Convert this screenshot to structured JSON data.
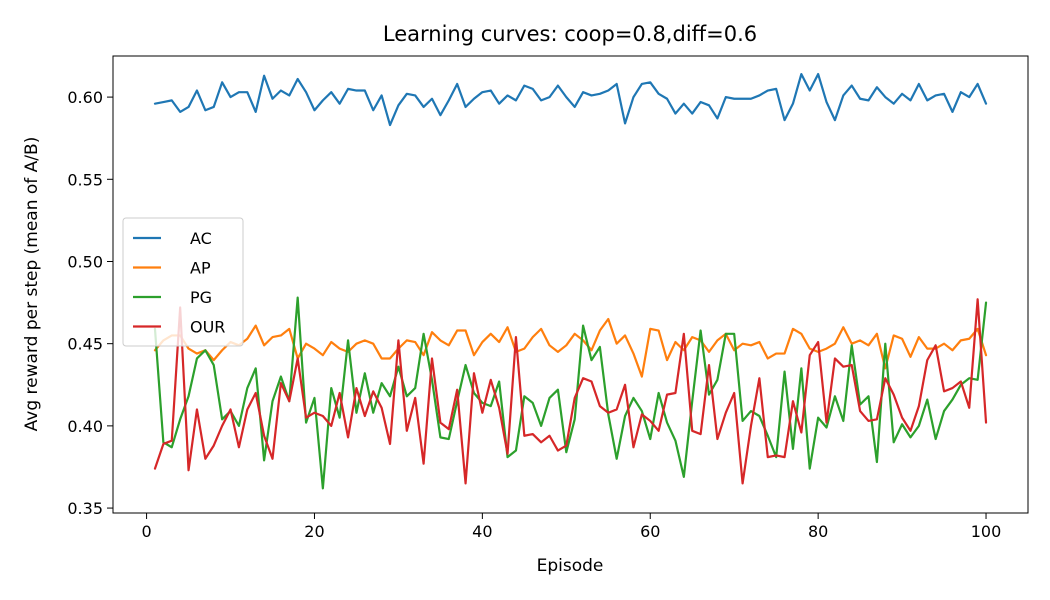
{
  "chart_data": {
    "type": "line",
    "title": "Learning curves: coop=0.8,diff=0.6",
    "xlabel": "Episode",
    "ylabel": "Avg reward per step (mean of A/B)",
    "xlim": [
      -4,
      105
    ],
    "ylim": [
      0.347,
      0.625
    ],
    "xticks": [
      0,
      20,
      40,
      60,
      80,
      100
    ],
    "xtick_labels": [
      "0",
      "20",
      "40",
      "60",
      "80",
      "100"
    ],
    "yticks": [
      0.35,
      0.4,
      0.45,
      0.5,
      0.55,
      0.6
    ],
    "ytick_labels": [
      "0.35",
      "0.40",
      "0.45",
      "0.50",
      "0.55",
      "0.60"
    ],
    "grid": false,
    "legend_position": "center-left",
    "x": [
      1,
      2,
      3,
      4,
      5,
      6,
      7,
      8,
      9,
      10,
      11,
      12,
      13,
      14,
      15,
      16,
      17,
      18,
      19,
      20,
      21,
      22,
      23,
      24,
      25,
      26,
      27,
      28,
      29,
      30,
      31,
      32,
      33,
      34,
      35,
      36,
      37,
      38,
      39,
      40,
      41,
      42,
      43,
      44,
      45,
      46,
      47,
      48,
      49,
      50,
      51,
      52,
      53,
      54,
      55,
      56,
      57,
      58,
      59,
      60,
      61,
      62,
      63,
      64,
      65,
      66,
      67,
      68,
      69,
      70,
      71,
      72,
      73,
      74,
      75,
      76,
      77,
      78,
      79,
      80,
      81,
      82,
      83,
      84,
      85,
      86,
      87,
      88,
      89,
      90,
      91,
      92,
      93,
      94,
      95,
      96,
      97,
      98,
      99,
      100
    ],
    "series": [
      {
        "name": "AC",
        "color": "#1f77b4",
        "values": [
          0.596,
          0.597,
          0.598,
          0.591,
          0.594,
          0.604,
          0.592,
          0.594,
          0.609,
          0.6,
          0.603,
          0.603,
          0.591,
          0.613,
          0.599,
          0.604,
          0.601,
          0.611,
          0.603,
          0.592,
          0.598,
          0.603,
          0.596,
          0.605,
          0.604,
          0.604,
          0.592,
          0.601,
          0.583,
          0.595,
          0.602,
          0.601,
          0.594,
          0.599,
          0.589,
          0.598,
          0.608,
          0.594,
          0.599,
          0.603,
          0.604,
          0.596,
          0.601,
          0.598,
          0.607,
          0.605,
          0.598,
          0.6,
          0.607,
          0.6,
          0.594,
          0.603,
          0.601,
          0.602,
          0.604,
          0.608,
          0.584,
          0.6,
          0.608,
          0.609,
          0.602,
          0.599,
          0.59,
          0.596,
          0.59,
          0.597,
          0.595,
          0.587,
          0.6,
          0.599,
          0.599,
          0.599,
          0.601,
          0.604,
          0.605,
          0.586,
          0.596,
          0.614,
          0.604,
          0.614,
          0.597,
          0.586,
          0.601,
          0.607,
          0.599,
          0.598,
          0.606,
          0.6,
          0.596,
          0.602,
          0.598,
          0.608,
          0.598,
          0.601,
          0.602,
          0.591,
          0.603,
          0.6,
          0.608,
          0.596
        ]
      },
      {
        "name": "AP",
        "color": "#ff7f0e",
        "values": [
          0.446,
          0.452,
          0.455,
          0.455,
          0.447,
          0.444,
          0.446,
          0.44,
          0.446,
          0.451,
          0.449,
          0.453,
          0.461,
          0.449,
          0.454,
          0.455,
          0.459,
          0.441,
          0.45,
          0.447,
          0.443,
          0.451,
          0.447,
          0.445,
          0.45,
          0.452,
          0.45,
          0.441,
          0.441,
          0.447,
          0.452,
          0.451,
          0.443,
          0.457,
          0.452,
          0.449,
          0.458,
          0.458,
          0.443,
          0.451,
          0.456,
          0.451,
          0.46,
          0.445,
          0.447,
          0.454,
          0.459,
          0.449,
          0.445,
          0.449,
          0.456,
          0.452,
          0.446,
          0.458,
          0.465,
          0.45,
          0.455,
          0.444,
          0.43,
          0.459,
          0.458,
          0.44,
          0.451,
          0.446,
          0.454,
          0.452,
          0.445,
          0.452,
          0.456,
          0.446,
          0.45,
          0.449,
          0.451,
          0.441,
          0.444,
          0.444,
          0.459,
          0.456,
          0.447,
          0.445,
          0.447,
          0.45,
          0.46,
          0.45,
          0.452,
          0.449,
          0.456,
          0.435,
          0.455,
          0.453,
          0.442,
          0.454,
          0.447,
          0.447,
          0.45,
          0.446,
          0.452,
          0.453,
          0.459,
          0.443
        ]
      },
      {
        "name": "PG",
        "color": "#2ca02c",
        "values": [
          0.459,
          0.39,
          0.387,
          0.404,
          0.418,
          0.441,
          0.446,
          0.437,
          0.404,
          0.409,
          0.4,
          0.423,
          0.435,
          0.379,
          0.415,
          0.43,
          0.415,
          0.478,
          0.402,
          0.417,
          0.362,
          0.423,
          0.405,
          0.452,
          0.408,
          0.432,
          0.408,
          0.426,
          0.418,
          0.436,
          0.418,
          0.423,
          0.456,
          0.428,
          0.393,
          0.392,
          0.415,
          0.437,
          0.42,
          0.414,
          0.412,
          0.427,
          0.381,
          0.385,
          0.418,
          0.414,
          0.4,
          0.417,
          0.422,
          0.384,
          0.404,
          0.461,
          0.44,
          0.448,
          0.407,
          0.38,
          0.406,
          0.417,
          0.409,
          0.392,
          0.42,
          0.402,
          0.391,
          0.369,
          0.415,
          0.458,
          0.419,
          0.428,
          0.456,
          0.456,
          0.403,
          0.409,
          0.406,
          0.394,
          0.381,
          0.433,
          0.386,
          0.435,
          0.374,
          0.405,
          0.399,
          0.418,
          0.403,
          0.449,
          0.413,
          0.418,
          0.378,
          0.45,
          0.39,
          0.401,
          0.393,
          0.4,
          0.416,
          0.392,
          0.409,
          0.416,
          0.425,
          0.429,
          0.428,
          0.475
        ]
      },
      {
        "name": "OUR",
        "color": "#d62728",
        "values": [
          0.374,
          0.389,
          0.391,
          0.472,
          0.373,
          0.41,
          0.38,
          0.388,
          0.4,
          0.41,
          0.387,
          0.41,
          0.42,
          0.394,
          0.38,
          0.426,
          0.415,
          0.441,
          0.405,
          0.408,
          0.406,
          0.4,
          0.42,
          0.393,
          0.423,
          0.406,
          0.421,
          0.411,
          0.389,
          0.452,
          0.397,
          0.417,
          0.377,
          0.441,
          0.402,
          0.398,
          0.422,
          0.365,
          0.432,
          0.408,
          0.428,
          0.411,
          0.383,
          0.454,
          0.394,
          0.395,
          0.39,
          0.394,
          0.385,
          0.388,
          0.417,
          0.429,
          0.427,
          0.412,
          0.408,
          0.41,
          0.425,
          0.387,
          0.407,
          0.403,
          0.397,
          0.419,
          0.42,
          0.456,
          0.397,
          0.395,
          0.437,
          0.392,
          0.408,
          0.42,
          0.365,
          0.4,
          0.429,
          0.381,
          0.382,
          0.381,
          0.415,
          0.396,
          0.443,
          0.451,
          0.402,
          0.441,
          0.436,
          0.437,
          0.409,
          0.403,
          0.404,
          0.429,
          0.419,
          0.405,
          0.397,
          0.412,
          0.44,
          0.449,
          0.421,
          0.423,
          0.427,
          0.411,
          0.477,
          0.402
        ]
      }
    ]
  }
}
